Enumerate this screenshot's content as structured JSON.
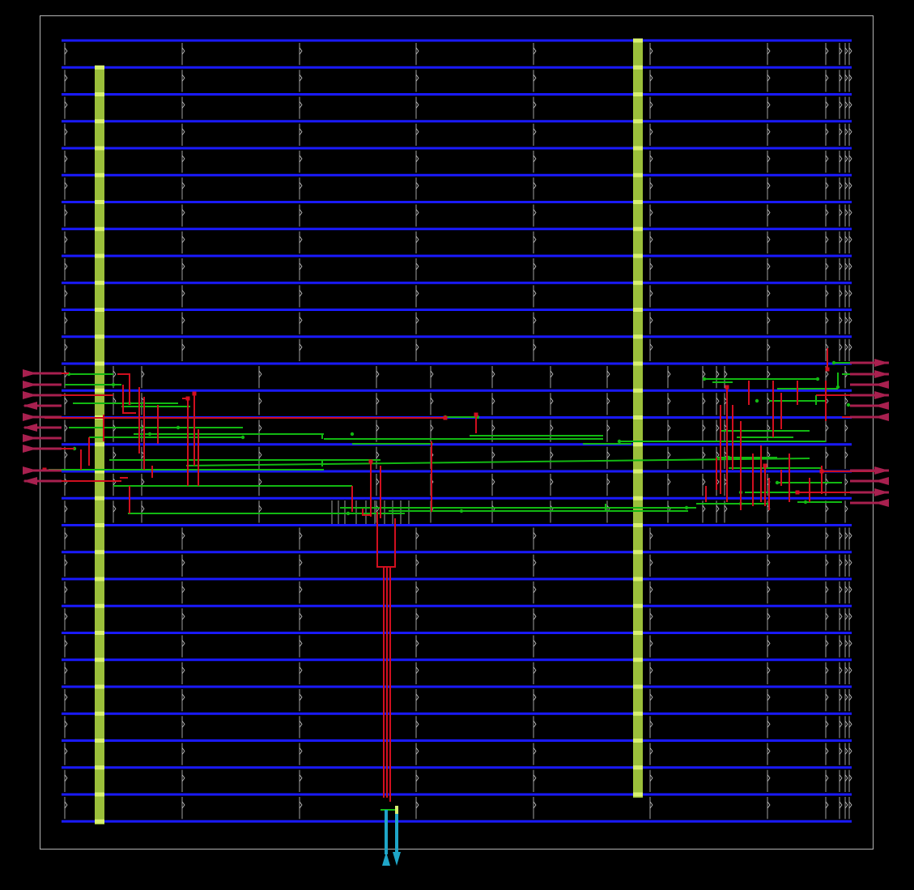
{
  "view": {
    "type": "chip-layout",
    "background": "#000000"
  },
  "layers": {
    "die_boundary": "#b4b4b4",
    "power_rails": "#1a1aff",
    "power_straps": "#9bbf3a",
    "strap_vias": "#d8f070",
    "metal_red": "#d10f1f",
    "metal_green": "#12b812",
    "cell_marks": "#c8c8c8",
    "io_pin_magenta": "#a8204f",
    "io_pin_cyan": "#1fa6c8"
  }
}
